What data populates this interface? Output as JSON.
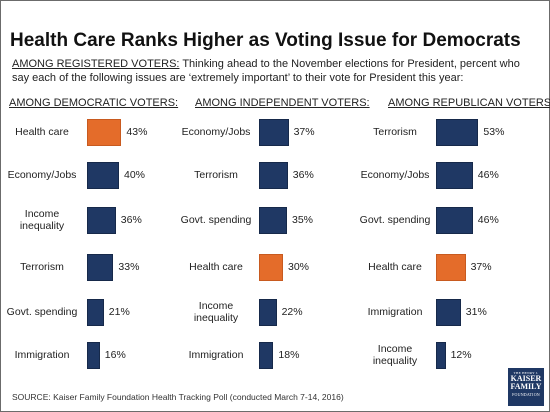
{
  "title": "Health Care Ranks Higher as Voting Issue for Democrats",
  "subtitle_lead": "AMONG REGISTERED VOTERS:",
  "subtitle_rest": " Thinking ahead to the November elections for President, percent who say each of the following issues are ‘extremely important’ to their vote for President this year:",
  "source": "SOURCE: Kaiser Family Foundation Health Tracking Poll (conducted March 7-14, 2016)",
  "logo": {
    "line1": "THE HENRY J.",
    "line2": "KAISER",
    "line3": "FAMILY",
    "line4": "FOUNDATION"
  },
  "colors": {
    "default_bar": "#1f3864",
    "highlight_bar": "#e46c2a"
  },
  "chart_data": [
    {
      "type": "bar",
      "orientation": "horizontal",
      "title": "AMONG DEMOCRATIC VOTERS:",
      "categories": [
        "Health care",
        "Economy/Jobs",
        "Income inequality",
        "Terrorism",
        "Govt. spending",
        "Immigration"
      ],
      "values": [
        43,
        40,
        36,
        33,
        21,
        16
      ],
      "value_labels": [
        "43%",
        "40%",
        "36%",
        "33%",
        "21%",
        "16%"
      ],
      "highlight": "Health care",
      "xlim": [
        0,
        60
      ],
      "unit": "%"
    },
    {
      "type": "bar",
      "orientation": "horizontal",
      "title": "AMONG INDEPENDENT VOTERS:",
      "categories": [
        "Economy/Jobs",
        "Terrorism",
        "Govt. spending",
        "Health care",
        "Income inequality",
        "Immigration"
      ],
      "values": [
        37,
        36,
        35,
        30,
        22,
        18
      ],
      "value_labels": [
        "37%",
        "36%",
        "35%",
        "30%",
        "22%",
        "18%"
      ],
      "highlight": "Health care",
      "xlim": [
        0,
        60
      ],
      "unit": "%"
    },
    {
      "type": "bar",
      "orientation": "horizontal",
      "title": "AMONG REPUBLICAN VOTERS:",
      "categories": [
        "Terrorism",
        "Economy/Jobs",
        "Govt. spending",
        "Health care",
        "Immigration",
        "Income inequality"
      ],
      "values": [
        53,
        46,
        46,
        37,
        31,
        12
      ],
      "value_labels": [
        "53%",
        "46%",
        "46%",
        "37%",
        "31%",
        "12%"
      ],
      "highlight": "Health care",
      "xlim": [
        0,
        60
      ],
      "unit": "%"
    }
  ]
}
